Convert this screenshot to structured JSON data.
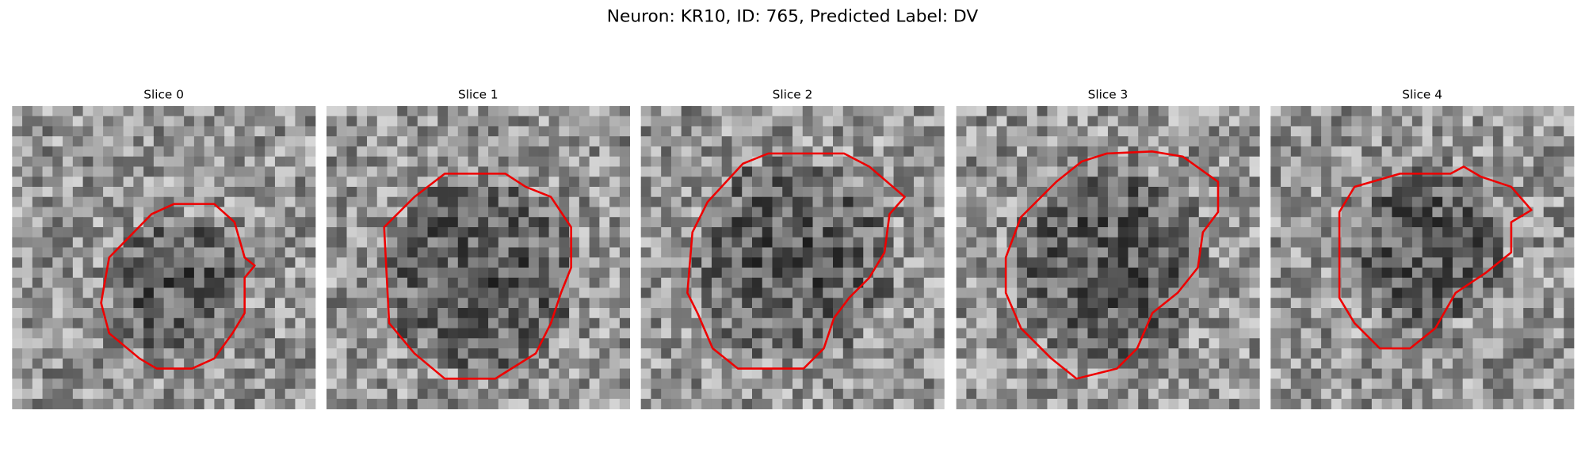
{
  "title": "Neuron: KR10, ID: 765, Predicted Label: DV",
  "panels": [
    {
      "title": "Slice 0"
    },
    {
      "title": "Slice 1"
    },
    {
      "title": "Slice 2"
    },
    {
      "title": "Slice 3"
    },
    {
      "title": "Slice 4"
    }
  ]
}
